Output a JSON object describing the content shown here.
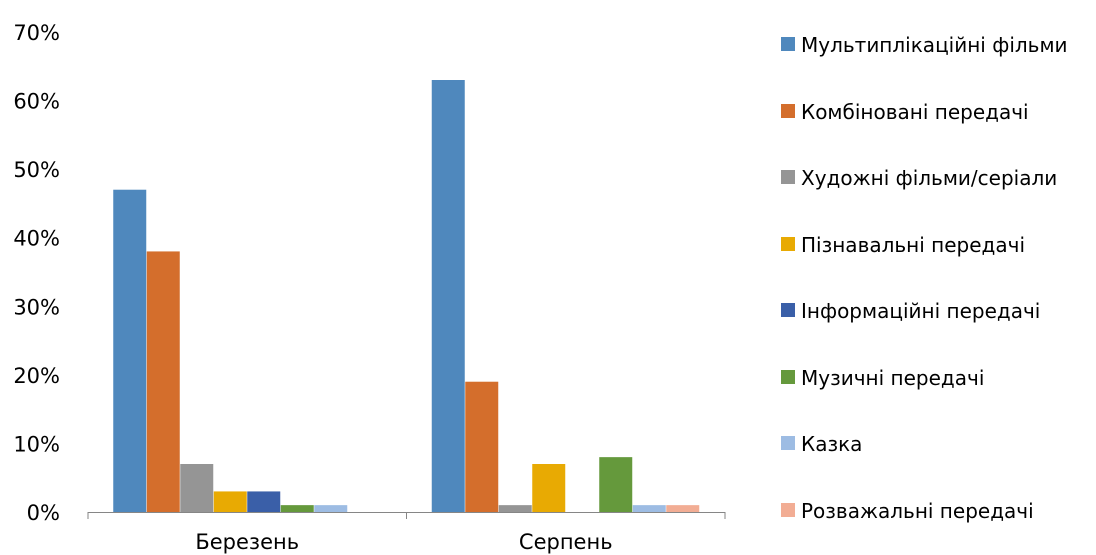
{
  "chart_data": {
    "type": "bar",
    "categories": [
      "Березень",
      "Серпень"
    ],
    "ylim": [
      0,
      70
    ],
    "yticks": [
      "0%",
      "10%",
      "20%",
      "30%",
      "40%",
      "50%",
      "60%",
      "70%"
    ],
    "legend_position": "right",
    "series": [
      {
        "name": "Мультиплікаційні фільми",
        "color": "#4f88bd",
        "values": [
          47,
          63
        ]
      },
      {
        "name": "Комбіновані передачі",
        "color": "#d46e2c",
        "values": [
          38,
          19
        ]
      },
      {
        "name": "Художні фільми/серіали",
        "color": "#959595",
        "values": [
          7,
          1
        ]
      },
      {
        "name": "Пізнавальні передачі",
        "color": "#e8aa03",
        "values": [
          3,
          7
        ]
      },
      {
        "name": "Інформаційні передачі",
        "color": "#3a5fa8",
        "values": [
          3,
          0
        ]
      },
      {
        "name": "Музичні передачі",
        "color": "#65993c",
        "values": [
          1,
          8
        ]
      },
      {
        "name": "Казка",
        "color": "#9dbce3",
        "values": [
          1,
          1
        ]
      },
      {
        "name": "Розважальні передачі",
        "color": "#f2ad94",
        "values": [
          0,
          1
        ]
      }
    ]
  }
}
